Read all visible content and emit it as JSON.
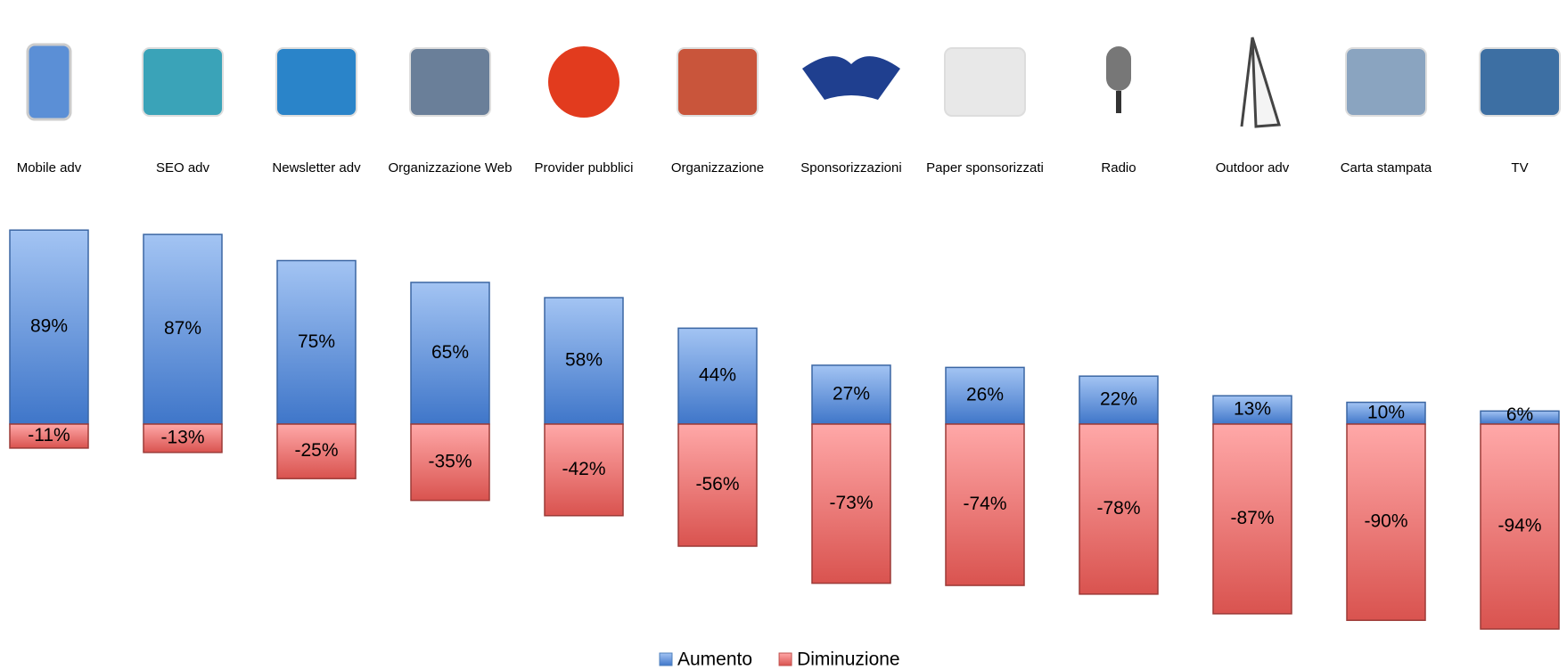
{
  "chart_data": {
    "type": "bar",
    "categories": [
      "Mobile adv",
      "SEO adv",
      "Newsletter adv",
      "Organizzazione Web",
      "Provider pubblici",
      "Organizzazione",
      "Sponsorizzazioni",
      "Paper sponsorizzati",
      "Radio",
      "Outdoor adv",
      "Carta stampata",
      "TV"
    ],
    "series": [
      {
        "name": "Aumento",
        "color": "#4f81bd",
        "values": [
          89,
          87,
          75,
          65,
          58,
          44,
          27,
          26,
          22,
          13,
          10,
          6
        ],
        "value_labels": [
          "89%",
          "87%",
          "75%",
          "65%",
          "58%",
          "44%",
          "27%",
          "26%",
          "22%",
          "13%",
          "10%",
          "6%"
        ]
      },
      {
        "name": "Diminuzione",
        "color": "#c0504d",
        "values": [
          -11,
          -13,
          -25,
          -35,
          -42,
          -56,
          -73,
          -74,
          -78,
          -87,
          -90,
          -94
        ],
        "value_labels": [
          "-11%",
          "-13%",
          "-25%",
          "-35%",
          "-42%",
          "-56%",
          "-73%",
          "-74%",
          "-78%",
          "-87%",
          "-90%",
          "-94%"
        ]
      }
    ],
    "legend": "bottom"
  }
}
